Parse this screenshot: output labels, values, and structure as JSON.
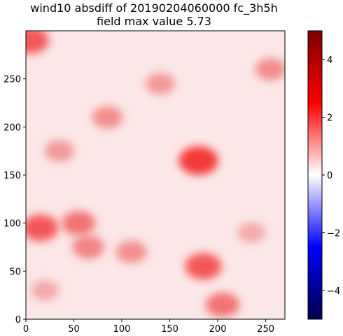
{
  "chart_data": {
    "type": "heatmap",
    "title_line1": "wind10 absdiff of 20190204060000 fc_3h5h",
    "title_line2": "field max value 5.73",
    "xlabel": "",
    "ylabel": "",
    "xlim": [
      0,
      270
    ],
    "ylim": [
      0,
      300
    ],
    "x_ticks": [
      0,
      50,
      100,
      150,
      200,
      250
    ],
    "y_ticks": [
      0,
      50,
      100,
      150,
      200,
      250
    ],
    "colorbar": {
      "colormap": "seismic",
      "range": [
        -5,
        5
      ],
      "ticks": [
        -4,
        -2,
        0,
        2,
        4
      ],
      "tick_labels": [
        "−4",
        "−2",
        "0",
        "2",
        "4"
      ]
    },
    "field_max": 5.73,
    "hotspots": [
      {
        "x": 15,
        "y": 95,
        "value": 3.0
      },
      {
        "x": 55,
        "y": 100,
        "value": 2.5
      },
      {
        "x": 65,
        "y": 75,
        "value": 2.2
      },
      {
        "x": 110,
        "y": 70,
        "value": 2.0
      },
      {
        "x": 185,
        "y": 55,
        "value": 3.0
      },
      {
        "x": 205,
        "y": 15,
        "value": 2.5
      },
      {
        "x": 85,
        "y": 210,
        "value": 2.0
      },
      {
        "x": 180,
        "y": 165,
        "value": 3.5
      },
      {
        "x": 5,
        "y": 290,
        "value": 3.0
      },
      {
        "x": 255,
        "y": 260,
        "value": 2.0
      },
      {
        "x": 35,
        "y": 175,
        "value": 1.8
      },
      {
        "x": 20,
        "y": 30,
        "value": 1.5
      },
      {
        "x": 140,
        "y": 245,
        "value": 1.8
      },
      {
        "x": 235,
        "y": 90,
        "value": 1.5
      }
    ],
    "colors": {
      "background_field": "#fbe8e8",
      "max_red": "#800000",
      "min_blue": "#00004c"
    }
  }
}
